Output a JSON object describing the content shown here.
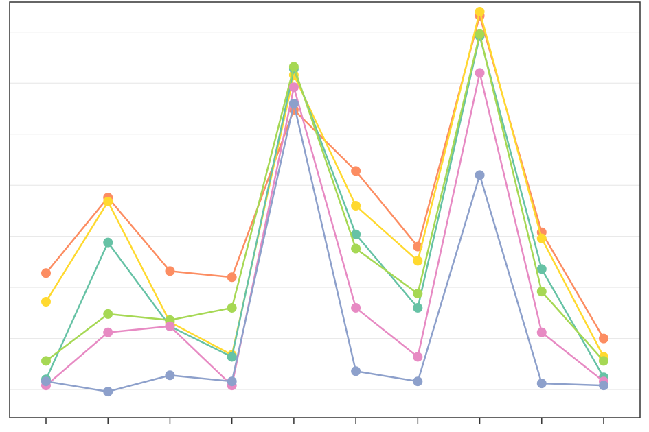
{
  "chart_data": {
    "type": "line",
    "title": "",
    "xlabel": "",
    "ylabel": "",
    "x": [
      1,
      2,
      3,
      4,
      5,
      6,
      7,
      8,
      9,
      10
    ],
    "ylim": [
      0,
      19
    ],
    "grid": true,
    "legend": "none",
    "series": [
      {
        "color": "#fc8d62",
        "values": [
          6.2,
          9.9,
          6.3,
          6.0,
          14.2,
          11.2,
          7.5,
          18.8,
          8.2,
          3.0
        ]
      },
      {
        "color": "#ffd92f",
        "values": [
          4.8,
          9.7,
          3.8,
          2.2,
          15.9,
          9.5,
          6.8,
          19.0,
          7.9,
          2.1
        ]
      },
      {
        "color": "#66c2a5",
        "values": [
          1.0,
          7.7,
          3.6,
          2.1,
          16.2,
          8.1,
          4.5,
          17.8,
          6.4,
          1.1
        ]
      },
      {
        "color": "#a6d854",
        "values": [
          1.9,
          4.2,
          3.9,
          4.5,
          16.3,
          7.4,
          5.2,
          17.9,
          5.3,
          1.9
        ]
      },
      {
        "color": "#e78ac3",
        "values": [
          0.7,
          3.3,
          3.6,
          0.7,
          15.3,
          4.5,
          2.1,
          16.0,
          3.3,
          0.9
        ]
      },
      {
        "color": "#8da0cb",
        "values": [
          0.9,
          0.4,
          1.2,
          0.9,
          14.5,
          1.4,
          0.9,
          11.0,
          0.8,
          0.7
        ]
      }
    ]
  }
}
